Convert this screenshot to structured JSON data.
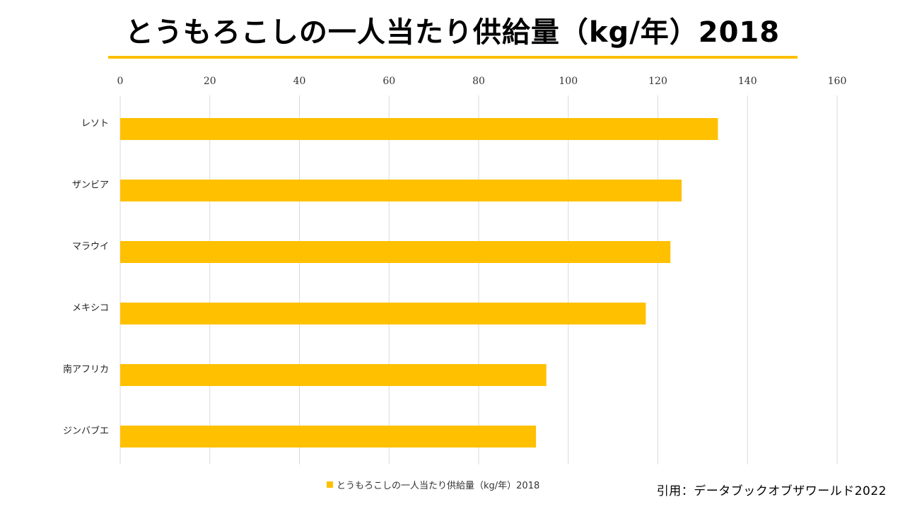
{
  "title": "とうもろこしの一人当たり供給量（kg/年）2018",
  "source": "引用：データブックオブザワールド2022",
  "colors": {
    "accent": "#FFC000",
    "bar": "#FFC000",
    "grid": "#D9D9D9"
  },
  "chart_data": {
    "type": "bar",
    "orientation": "horizontal",
    "title": "とうもろこしの一人当たり供給量（kg/年）2018",
    "categories": [
      "レソト",
      "ザンビア",
      "マラウイ",
      "メキシコ",
      "南アフリカ",
      "ジンバブエ"
    ],
    "series": [
      {
        "name": "とうもろこしの一人当たり供給量（kg/年）2018",
        "values": [
          133.4,
          125.3,
          122.8,
          117.3,
          95.1,
          92.8
        ]
      }
    ],
    "xlim": [
      0,
      160
    ],
    "xticks": [
      "0",
      "20",
      "40",
      "60",
      "80",
      "100",
      "120",
      "140",
      "160"
    ],
    "grid": true,
    "legend": "bottom",
    "xlabel": "",
    "ylabel": ""
  }
}
